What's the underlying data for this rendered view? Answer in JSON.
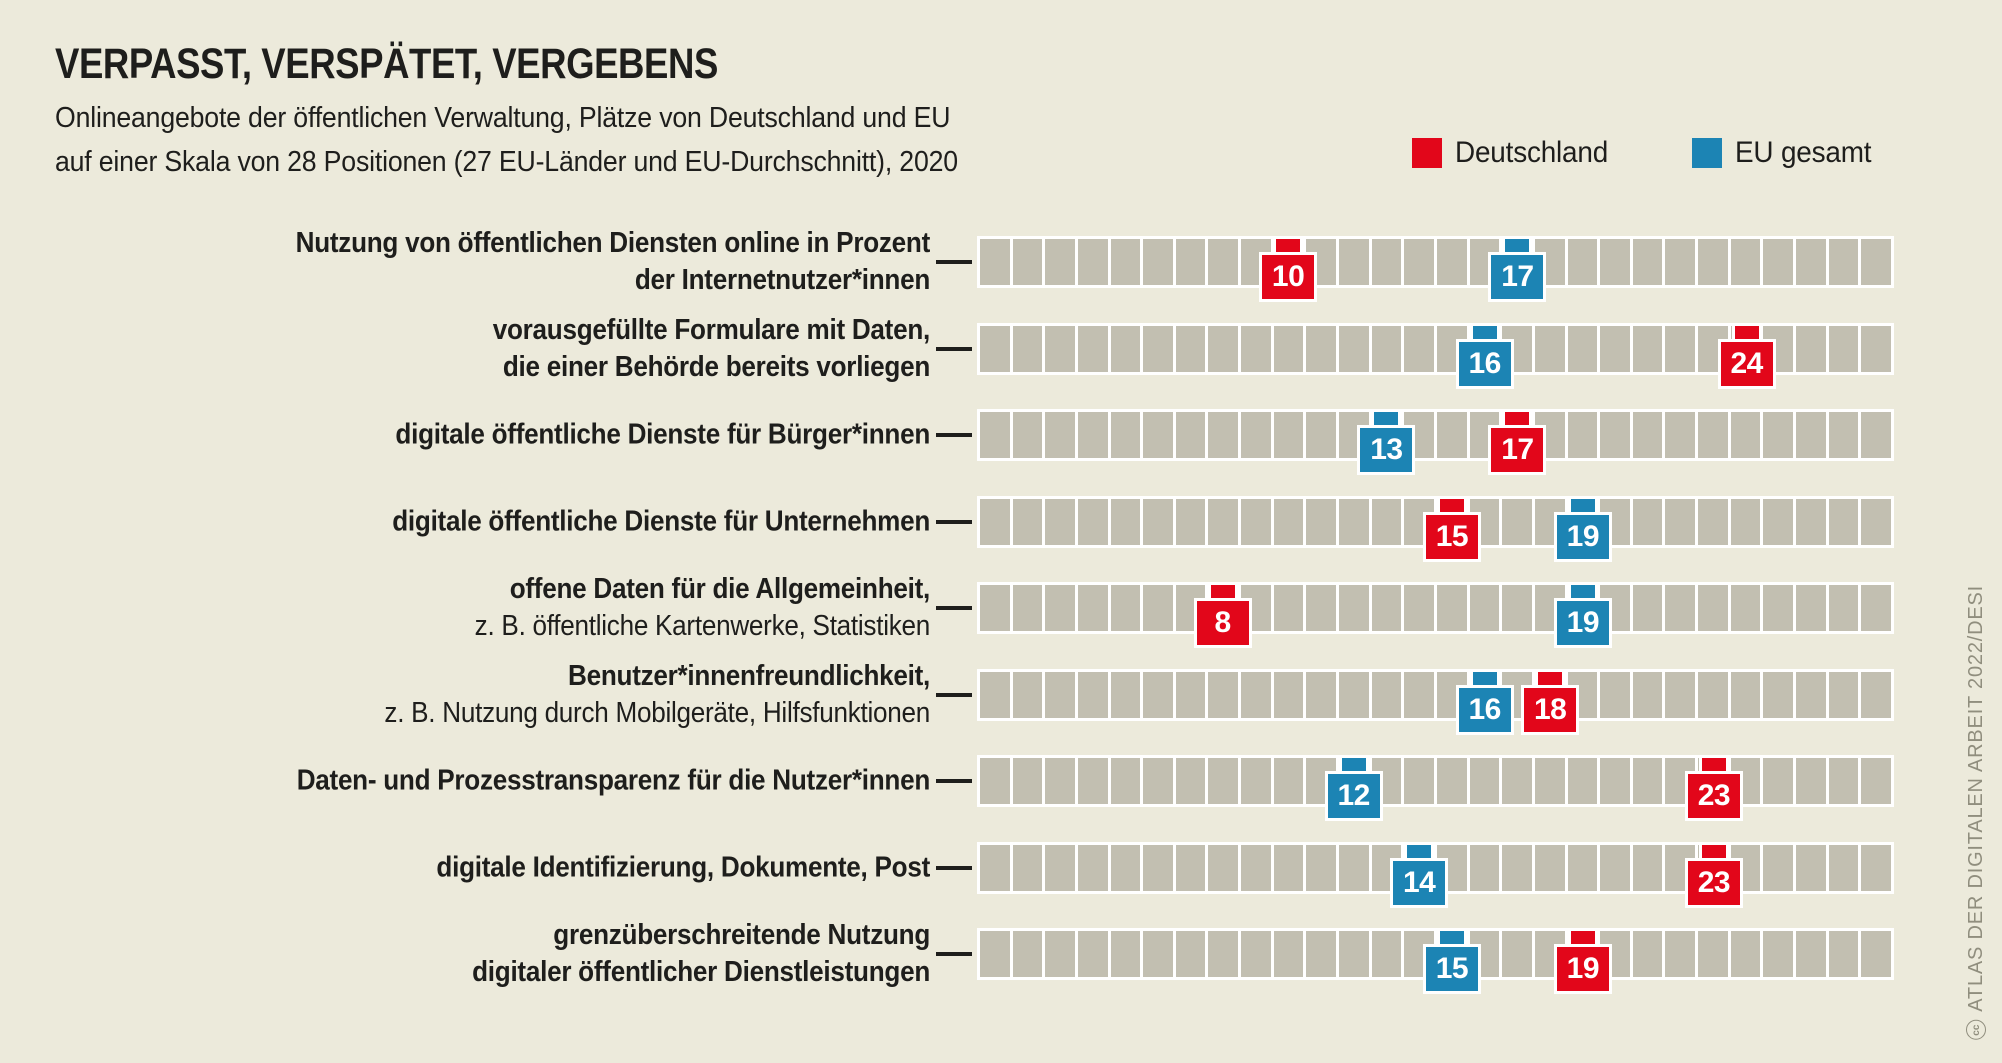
{
  "header": {
    "title": "VERPASST, VERSPÄTET, VERGEBENS",
    "subtitle_line1": "Onlineangebote der öffentlichen Verwaltung, Plätze von Deutschland und EU",
    "subtitle_line2": "auf einer Skala von 28 Positionen (27 EU-Länder und EU-Durchschnitt), 2020"
  },
  "legend": [
    {
      "label": "Deutschland",
      "color": "#E2061A"
    },
    {
      "label": "EU gesamt",
      "color": "#1C84B4"
    }
  ],
  "chart_data": {
    "type": "heatmap",
    "subtype": "position-strip, 28 cells per row, markers show rank positions",
    "scale": {
      "min": 1,
      "max": 28,
      "positions": 28,
      "note": "27 EU-Länder und EU-Durchschnitt"
    },
    "year": "2020",
    "series_names": [
      "Deutschland",
      "EU gesamt"
    ],
    "colors": {
      "deutschland": "#E2061A",
      "eu": "#1C84B4",
      "cell": "#C2BFB1",
      "strip_gap": "#FFFFFF",
      "background": "#ECEADB",
      "text": "#1E1E1C",
      "credit_text": "#908E7E"
    },
    "rows": [
      {
        "label_lines": [
          {
            "text": "Nutzung von öffentlichen Diensten online in Prozent",
            "bold": true
          },
          {
            "text": "der Internetnutzer*innen",
            "bold": true
          }
        ],
        "deutschland": 10,
        "eu": 17
      },
      {
        "label_lines": [
          {
            "text": "vorausgefüllte Formulare mit Daten,",
            "bold": true
          },
          {
            "text": "die einer Behörde bereits vorliegen",
            "bold": true
          }
        ],
        "deutschland": 24,
        "eu": 16
      },
      {
        "label_lines": [
          {
            "text": "digitale öffentliche Dienste für Bürger*innen",
            "bold": true
          }
        ],
        "deutschland": 17,
        "eu": 13
      },
      {
        "label_lines": [
          {
            "text": "digitale öffentliche Dienste für Unternehmen",
            "bold": true
          }
        ],
        "deutschland": 15,
        "eu": 19
      },
      {
        "label_lines": [
          {
            "text": "offene Daten für die Allgemeinheit,",
            "bold": true
          },
          {
            "text": "z. B. öffentliche Kartenwerke, Statistiken",
            "bold": false
          }
        ],
        "deutschland": 8,
        "eu": 19
      },
      {
        "label_lines": [
          {
            "text": "Benutzer*innenfreundlichkeit,",
            "bold": true
          },
          {
            "text": "z. B. Nutzung durch Mobilgeräte, Hilfsfunktionen",
            "bold": false
          }
        ],
        "deutschland": 18,
        "eu": 16
      },
      {
        "label_lines": [
          {
            "text": "Daten- und Prozesstransparenz für die Nutzer*innen",
            "bold": true
          }
        ],
        "deutschland": 23,
        "eu": 12
      },
      {
        "label_lines": [
          {
            "text": "digitale Identifizierung, Dokumente, Post",
            "bold": true
          }
        ],
        "deutschland": 23,
        "eu": 14
      },
      {
        "label_lines": [
          {
            "text": "grenzüberschreitende Nutzung",
            "bold": true
          },
          {
            "text": "digitaler öffentlicher Dienstleistungen",
            "bold": true
          }
        ],
        "deutschland": 19,
        "eu": 15
      }
    ]
  },
  "footer": {
    "license_icon": "cc",
    "credit": "ATLAS DER DIGITALEN ARBEIT 2022/DESI"
  }
}
